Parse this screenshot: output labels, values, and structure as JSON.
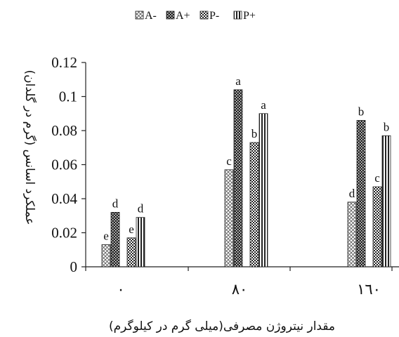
{
  "chart_data": {
    "type": "bar",
    "categories": [
      "٠",
      "٨٠",
      "١٦٠"
    ],
    "series": [
      {
        "name": "A-",
        "values": [
          0.013,
          0.057,
          0.038
        ],
        "labels": [
          "e",
          "c",
          "d"
        ],
        "pattern": "dots-sparse"
      },
      {
        "name": "A+",
        "values": [
          0.032,
          0.104,
          0.086
        ],
        "labels": [
          "d",
          "a",
          "b"
        ],
        "pattern": "dots-dense"
      },
      {
        "name": "P-",
        "values": [
          0.017,
          0.073,
          0.047
        ],
        "labels": [
          "e",
          "b",
          "c"
        ],
        "pattern": "dots-medium"
      },
      {
        "name": "P+",
        "values": [
          0.029,
          0.09,
          0.077
        ],
        "labels": [
          "d",
          "a",
          "b"
        ],
        "pattern": "vertical-stripes"
      }
    ],
    "yticks": [
      "0",
      "0.02",
      "0.04",
      "0.06",
      "0.08",
      "0.1",
      "0.12"
    ],
    "ylim": [
      0,
      0.12
    ],
    "xlabel": "مقدار نیتروژن مصرفی(میلی گرم در کیلوگرم)",
    "ylabel": "عملکرد اسانس (گرم در گلدان)",
    "legend": "top",
    "grid": false
  }
}
